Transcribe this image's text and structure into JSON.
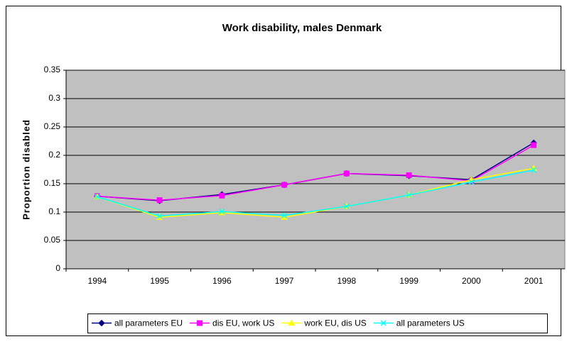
{
  "chart_data": {
    "type": "line",
    "title": "Work disability, males Denmark",
    "y_label": "Proportion disabled",
    "categories": [
      "1994",
      "1995",
      "1996",
      "1997",
      "1998",
      "1999",
      "2000",
      "2001"
    ],
    "series": [
      {
        "name": "all parameters EU",
        "color": "#000080",
        "marker": "diamond",
        "values": [
          0.128,
          0.12,
          0.131,
          0.148,
          0.168,
          0.164,
          0.157,
          0.222
        ]
      },
      {
        "name": "dis EU, work US",
        "color": "#FF00FF",
        "marker": "square",
        "values": [
          0.128,
          0.121,
          0.129,
          0.148,
          0.168,
          0.165,
          0.155,
          0.218
        ]
      },
      {
        "name": "work EU, dis US",
        "color": "#FFFF00",
        "marker": "triangle",
        "values": [
          0.127,
          0.091,
          0.099,
          0.091,
          0.11,
          0.13,
          0.157,
          0.177
        ]
      },
      {
        "name": "all parameters US",
        "color": "#00FFFF",
        "marker": "x",
        "values": [
          0.127,
          0.093,
          0.101,
          0.094,
          0.11,
          0.13,
          0.153,
          0.174
        ]
      }
    ],
    "ylim": [
      0,
      0.35
    ],
    "yticks": [
      0,
      0.05,
      0.1,
      0.15,
      0.2,
      0.25,
      0.3,
      0.35
    ],
    "grid": true,
    "legend": "bottom",
    "plot_background": "#C0C0C0"
  }
}
